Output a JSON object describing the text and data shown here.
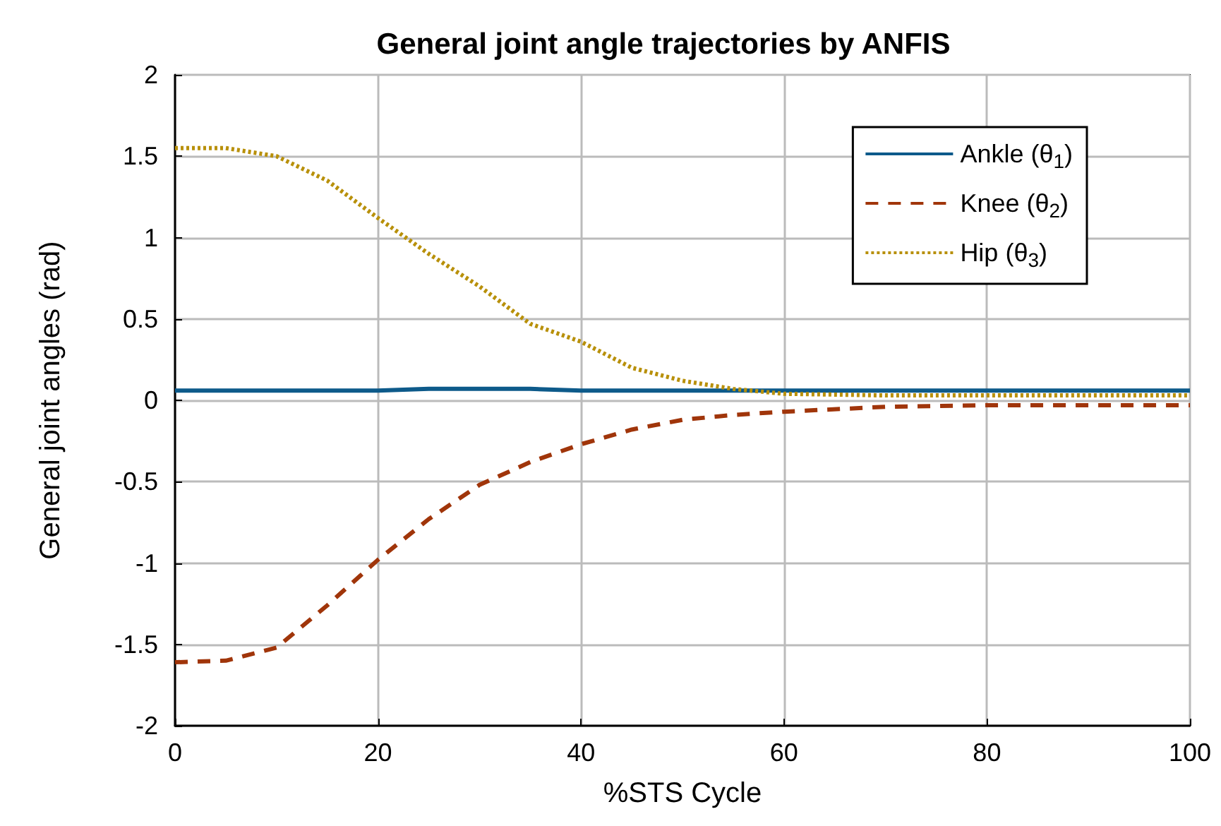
{
  "chart_data": {
    "type": "line",
    "title": "General joint angle trajectories by ANFIS",
    "xlabel": "%STS Cycle",
    "ylabel": "General joint angles (rad)",
    "x": [
      0,
      5,
      10,
      15,
      20,
      25,
      30,
      35,
      40,
      45,
      50,
      55,
      60,
      70,
      80,
      90,
      100
    ],
    "series": [
      {
        "name": "Ankle (θ$_{1}$)",
        "color": "#0d5a8a",
        "line_style": "solid",
        "values": [
          0.06,
          0.06,
          0.06,
          0.06,
          0.06,
          0.07,
          0.07,
          0.07,
          0.06,
          0.06,
          0.06,
          0.06,
          0.06,
          0.06,
          0.06,
          0.06,
          0.06
        ]
      },
      {
        "name": "Knee (θ$_{2}$)",
        "color": "#a0350a",
        "line_style": "dashed",
        "values": [
          -1.61,
          -1.6,
          -1.52,
          -1.26,
          -0.98,
          -0.73,
          -0.52,
          -0.38,
          -0.27,
          -0.18,
          -0.12,
          -0.09,
          -0.07,
          -0.04,
          -0.03,
          -0.03,
          -0.03
        ]
      },
      {
        "name": "Hip (θ$_{3}$)",
        "color": "#b8900a",
        "line_style": "dotted",
        "values": [
          1.55,
          1.55,
          1.5,
          1.35,
          1.12,
          0.9,
          0.7,
          0.47,
          0.36,
          0.2,
          0.12,
          0.07,
          0.04,
          0.03,
          0.03,
          0.03,
          0.03
        ]
      }
    ],
    "xlim": [
      0,
      100
    ],
    "xticks": [
      0,
      20,
      40,
      60,
      80,
      100
    ],
    "ylim": [
      -2,
      2
    ],
    "yticks": [
      -2,
      -1.5,
      -1,
      -0.5,
      0,
      0.5,
      1,
      1.5,
      2
    ],
    "grid": true,
    "legend": "top right",
    "marker": "none"
  }
}
